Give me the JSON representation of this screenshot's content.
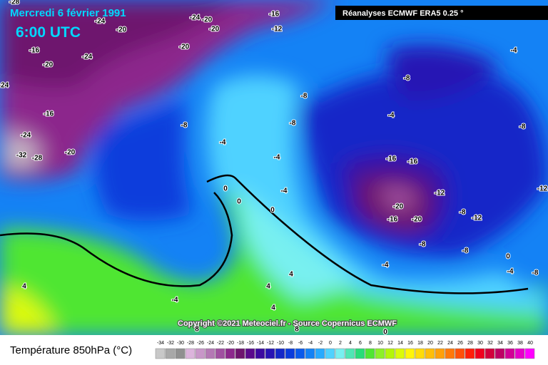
{
  "header": {
    "title": "Mercredi 6 février 1991",
    "time": "6:00 UTC",
    "source": "Réanalyses ECMWF ERA5 0.25 °"
  },
  "copyright": "Copyright ©2021 Meteociel.fr - Source Copernicus ECMWF",
  "legend": {
    "title": "Température 850hPa (°C)",
    "ticks": [
      -34,
      -32,
      -30,
      -28,
      -26,
      -24,
      -22,
      -20,
      -18,
      -16,
      -14,
      -12,
      -10,
      -8,
      -6,
      -4,
      -2,
      0,
      2,
      4,
      6,
      8,
      10,
      12,
      14,
      16,
      18,
      20,
      22,
      24,
      26,
      28,
      30,
      32,
      34,
      36,
      38,
      40
    ],
    "colors": [
      "#c8c8c8",
      "#a8a8a8",
      "#909090",
      "#dcb4dc",
      "#c896c8",
      "#b478b4",
      "#a050a0",
      "#8c288c",
      "#6e146e",
      "#5a0a8c",
      "#3c0aa0",
      "#2814b4",
      "#1428c8",
      "#0a3cdc",
      "#0a5aeb",
      "#1482f5",
      "#28aaff",
      "#50d2ff",
      "#78f0f0",
      "#50e6b4",
      "#28dc78",
      "#50e632",
      "#8cf028",
      "#b4f50a",
      "#dcfa0a",
      "#fff50a",
      "#ffdc0a",
      "#ffbe0a",
      "#ffa00a",
      "#ff780a",
      "#ff500a",
      "#ff1e0a",
      "#f0001e",
      "#d2003c",
      "#be0064",
      "#d20096",
      "#e600c8",
      "#ff00ff"
    ]
  },
  "contour_labels": [
    -28,
    -24,
    -20,
    -24,
    -20,
    -20,
    -16,
    -12,
    -16,
    -24,
    -20,
    -20,
    -24,
    -16,
    -24,
    -20,
    -32,
    -28,
    -8,
    -4,
    -8,
    -8,
    -4,
    -4,
    0,
    0,
    0,
    -8,
    -4,
    -16,
    -16,
    -12,
    -20,
    -16,
    -20,
    -8,
    -12,
    -8,
    -8,
    -4,
    -8,
    -12,
    0,
    -4,
    -8,
    -4,
    4,
    4,
    4,
    4,
    -4,
    0,
    8,
    8
  ]
}
